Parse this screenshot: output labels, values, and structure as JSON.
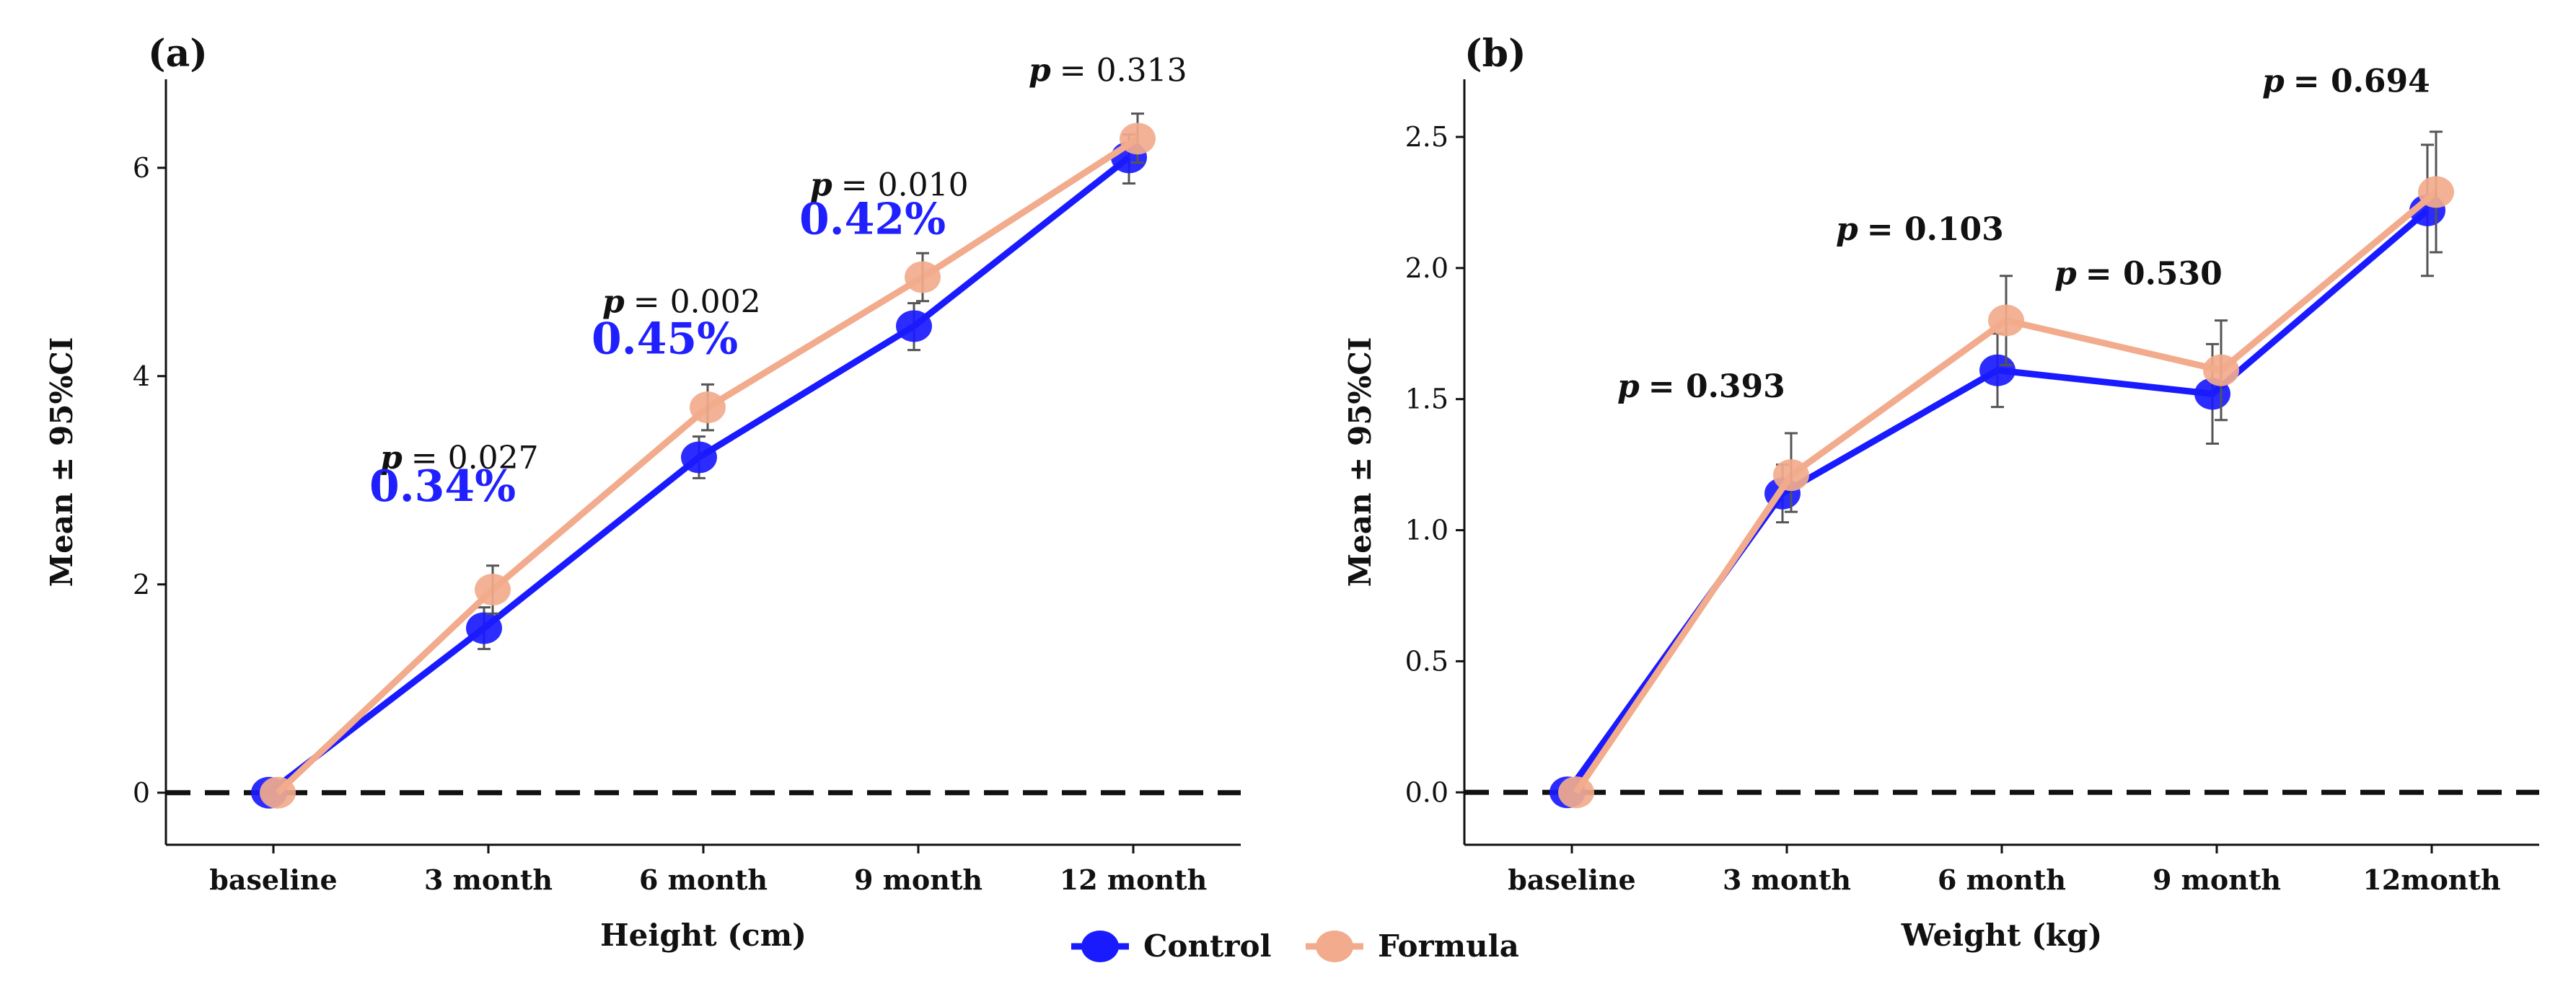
{
  "colors": {
    "control": "#1a1aff",
    "formula": "#f2ab8c",
    "axis": "#111111",
    "errorbar": "#555555"
  },
  "chart_data": [
    {
      "type": "line",
      "panel_label": "(a)",
      "xlabel": "Height (cm)",
      "ylabel": "Mean ± 95%CI",
      "ylim": [
        -0.5,
        6.85
      ],
      "yticks": [
        0,
        2,
        4,
        6
      ],
      "ytick_labels": [
        "0",
        "2",
        "4",
        "6"
      ],
      "reference_line": 0,
      "categories": [
        "baseline",
        "3 month",
        "6 month",
        "9 month",
        "12 month"
      ],
      "series": [
        {
          "name": "Control",
          "values": [
            0,
            1.58,
            3.22,
            4.48,
            6.1
          ],
          "ci_low": [
            0,
            1.38,
            3.02,
            4.25,
            5.85
          ],
          "ci_high": [
            0,
            1.78,
            3.42,
            4.7,
            6.32
          ]
        },
        {
          "name": "Formula",
          "values": [
            0,
            1.95,
            3.7,
            4.95,
            6.28
          ],
          "ci_low": [
            0,
            1.72,
            3.48,
            4.72,
            6.05
          ],
          "ci_high": [
            0,
            2.18,
            3.92,
            5.18,
            6.52
          ]
        }
      ],
      "annotations": [
        {
          "category_index": 1,
          "p_value": "= 0.027",
          "percent": "0.34%"
        },
        {
          "category_index": 2,
          "p_value": "= 0.002",
          "percent": "0.45%"
        },
        {
          "category_index": 3,
          "p_value": "= 0.010",
          "percent": "0.42%"
        },
        {
          "category_index": 4,
          "p_value": "= 0.313",
          "percent": ""
        }
      ]
    },
    {
      "type": "line",
      "panel_label": "(b)",
      "xlabel": "Weight (kg)",
      "ylabel": "Mean ± 95%CI",
      "ylim": [
        -0.2,
        2.72
      ],
      "yticks": [
        0,
        0.5,
        1,
        1.5,
        2,
        2.5
      ],
      "ytick_labels": [
        "0.0",
        "0.5",
        "1.0",
        "1.5",
        "2.0",
        "2.5"
      ],
      "reference_line": 0,
      "categories": [
        "baseline",
        "3 month",
        "6 month",
        "9 month",
        "12month"
      ],
      "series": [
        {
          "name": "Control",
          "values": [
            0,
            1.14,
            1.61,
            1.52,
            2.22
          ],
          "ci_low": [
            0,
            1.03,
            1.47,
            1.33,
            1.97
          ],
          "ci_high": [
            0,
            1.25,
            1.75,
            1.71,
            2.47
          ]
        },
        {
          "name": "Formula",
          "values": [
            0,
            1.21,
            1.8,
            1.61,
            2.29
          ],
          "ci_low": [
            0,
            1.07,
            1.63,
            1.42,
            2.06
          ],
          "ci_high": [
            0,
            1.37,
            1.97,
            1.8,
            2.52
          ]
        }
      ],
      "annotations": [
        {
          "category_index": 1,
          "p_value": "= 0.393",
          "percent": ""
        },
        {
          "category_index": 2,
          "p_value": "= 0.103",
          "percent": ""
        },
        {
          "category_index": 3,
          "p_value": "= 0.530",
          "percent": ""
        },
        {
          "category_index": 4,
          "p_value": "= 0.694",
          "percent": ""
        }
      ]
    }
  ],
  "legend": {
    "position": "bottom-center",
    "items": [
      {
        "label": "Control",
        "color_key": "control"
      },
      {
        "label": "Formula",
        "color_key": "formula"
      }
    ]
  }
}
